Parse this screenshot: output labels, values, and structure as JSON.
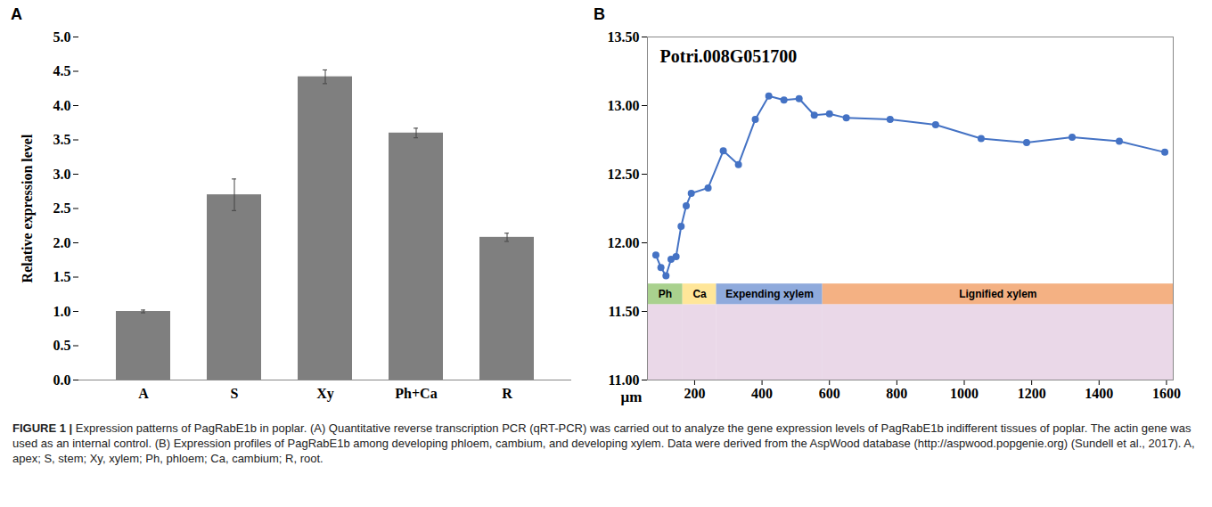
{
  "chart_data": [
    {
      "type": "bar",
      "panel": "A",
      "title": null,
      "categories": [
        "A",
        "S",
        "Xy",
        "Ph+Ca",
        "R"
      ],
      "values": [
        1.0,
        2.7,
        4.42,
        3.6,
        2.08
      ],
      "errors": [
        0.02,
        0.23,
        0.1,
        0.07,
        0.06
      ],
      "color": "#7f7f7f",
      "y_label": "Relative expression level",
      "ylim": [
        0,
        5
      ],
      "yticks": [
        {
          "value": 0,
          "label": "0.0"
        },
        {
          "value": 0.5,
          "label": "0.5"
        },
        {
          "value": 1,
          "label": "1.0"
        },
        {
          "value": 1.5,
          "label": "1.5"
        },
        {
          "value": 2,
          "label": "2.0"
        },
        {
          "value": 2.5,
          "label": "2.5"
        },
        {
          "value": 3,
          "label": "3.0"
        },
        {
          "value": 3.5,
          "label": "3.5"
        },
        {
          "value": 4,
          "label": "4.0"
        },
        {
          "value": 4.5,
          "label": "4.5"
        },
        {
          "value": 5,
          "label": "5.0"
        }
      ],
      "grid": false
    },
    {
      "type": "line",
      "panel": "B",
      "title": "Potri.008G051700",
      "x_label": "μm",
      "x": [
        85,
        100,
        115,
        130,
        145,
        160,
        175,
        190,
        240,
        285,
        330,
        380,
        420,
        465,
        510,
        555,
        600,
        650,
        780,
        915,
        1050,
        1185,
        1320,
        1460,
        1595
      ],
      "values": [
        11.91,
        11.82,
        11.76,
        11.88,
        11.9,
        12.12,
        12.27,
        12.36,
        12.4,
        12.67,
        12.57,
        12.9,
        13.07,
        13.04,
        13.05,
        12.93,
        12.94,
        12.91,
        12.9,
        12.86,
        12.76,
        12.73,
        12.77,
        12.74,
        12.66
      ],
      "color": "#4472c4",
      "marker": "circle",
      "line_style": "solid",
      "regions": [
        {
          "label": "Ph",
          "x": [
            60,
            165
          ],
          "color": "#a9d18e"
        },
        {
          "label": "Ca",
          "x": [
            165,
            265
          ],
          "color": "#ffe699"
        },
        {
          "label": "Expending xylem",
          "x": [
            265,
            580
          ],
          "color": "#8faadc"
        },
        {
          "label": "Lignified xylem",
          "x": [
            580,
            1620
          ],
          "color": "#f4b183"
        }
      ],
      "xlim": [
        60,
        1620
      ],
      "xticks": [
        200,
        400,
        600,
        800,
        1000,
        1200,
        1400,
        1600
      ],
      "ylim": [
        11,
        13.5
      ],
      "yticks": [
        {
          "value": 11,
          "label": "11.00"
        },
        {
          "value": 11.5,
          "label": "11.50"
        },
        {
          "value": 12,
          "label": "12.00"
        },
        {
          "value": 12.5,
          "label": "12.50"
        },
        {
          "value": 13,
          "label": "13.00"
        },
        {
          "value": 13.5,
          "label": "13.50"
        }
      ],
      "grid": false
    }
  ],
  "caption": {
    "label": "FIGURE 1 |",
    "text": "Expression patterns of PagRabE1b in poplar. (A) Quantitative reverse transcription PCR (qRT-PCR) was carried out to analyze the gene expression levels of PagRabE1b indifferent tissues of poplar. The actin gene was used as an internal control. (B) Expression profiles of PagRabE1b among developing phloem, cambium, and developing xylem. Data were derived from the AspWood database (http://aspwood.popgenie.org) (Sundell et al., 2017). A, apex; S, stem; Xy, xylem; Ph, phloem; Ca, cambium; R, root."
  }
}
